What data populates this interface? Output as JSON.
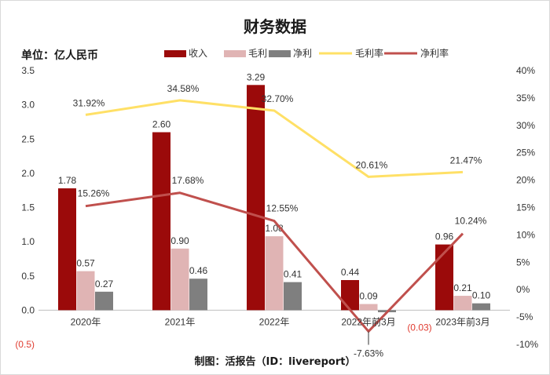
{
  "chart_data": {
    "type": "bar",
    "title": "财务数据",
    "unit_label": "单位：亿人民币",
    "credit": "制图：活报告（ID：livereport）",
    "categories": [
      "2020年",
      "2021年",
      "2022年",
      "2022年前3月",
      "2023年前3月"
    ],
    "y_left": {
      "ticks": [
        "3.5",
        "3.0",
        "2.5",
        "2.0",
        "1.5",
        "1.0",
        "0.5",
        "0.0",
        "(0.5)"
      ],
      "ylim": [
        -0.5,
        3.5
      ]
    },
    "y_right": {
      "ticks": [
        "40%",
        "35%",
        "30%",
        "25%",
        "20%",
        "15%",
        "10%",
        "5%",
        "0%",
        "-5%",
        "-10%"
      ],
      "ylim": [
        -10,
        40
      ]
    },
    "series": [
      {
        "name": "收入",
        "kind": "bar",
        "color": "#9b0a0a",
        "values": [
          1.78,
          2.6,
          3.29,
          0.44,
          0.96
        ],
        "labels": [
          "1.78",
          "2.60",
          "3.29",
          "0.44",
          "0.96"
        ]
      },
      {
        "name": "毛利",
        "kind": "bar",
        "color": "#e0b4b4",
        "values": [
          0.57,
          0.9,
          1.08,
          0.09,
          0.21
        ],
        "labels": [
          "0.57",
          "0.90",
          "1.08",
          "0.09",
          "0.21"
        ]
      },
      {
        "name": "净利",
        "kind": "bar",
        "color": "#7f7f7f",
        "values": [
          0.27,
          0.46,
          0.41,
          -0.03,
          0.1
        ],
        "labels": [
          "0.27",
          "0.46",
          "0.41",
          "(0.03)",
          "0.10"
        ]
      },
      {
        "name": "毛利率",
        "kind": "line",
        "axis": "right",
        "color": "#ffe066",
        "values": [
          31.92,
          34.58,
          32.7,
          20.61,
          21.47
        ],
        "labels": [
          "31.92%",
          "34.58%",
          "32.70%",
          "20.61%",
          "21.47%"
        ]
      },
      {
        "name": "净利率",
        "kind": "line",
        "axis": "right",
        "color": "#c0504d",
        "values": [
          15.26,
          17.68,
          12.55,
          -7.63,
          10.24
        ],
        "labels": [
          "15.26%",
          "17.68%",
          "12.55%",
          "-7.63%",
          "10.24%"
        ]
      }
    ],
    "legend_position": "top",
    "grid": false
  }
}
